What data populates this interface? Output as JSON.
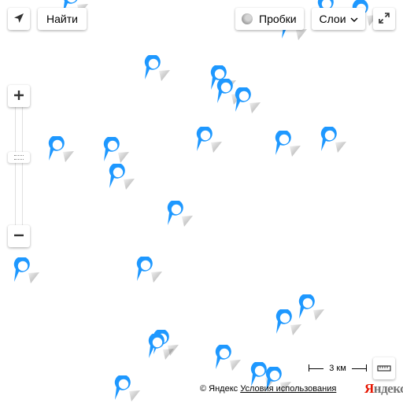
{
  "controls": {
    "find_label": "Найти",
    "traffic_label": "Пробки",
    "layers_label": "Слои",
    "zoom_in_label": "+",
    "zoom_out_label": "−"
  },
  "icons": {
    "geolocation": "navigation-arrow-icon",
    "traffic": "traffic-light-icon",
    "layers_dropdown": "chevron-down-icon",
    "fullscreen": "expand-icon",
    "ruler": "ruler-icon",
    "marker": "map-pin-icon"
  },
  "scale": {
    "label": "3 км"
  },
  "footer": {
    "copyright": "© Яндекс",
    "terms_link": "Условия использования",
    "logo_text": "Яндекс"
  },
  "colors": {
    "marker": "#1e98ff",
    "logo_accent": "#e61400",
    "logo_rest": "#777777"
  },
  "markers_count_visible": 27
}
